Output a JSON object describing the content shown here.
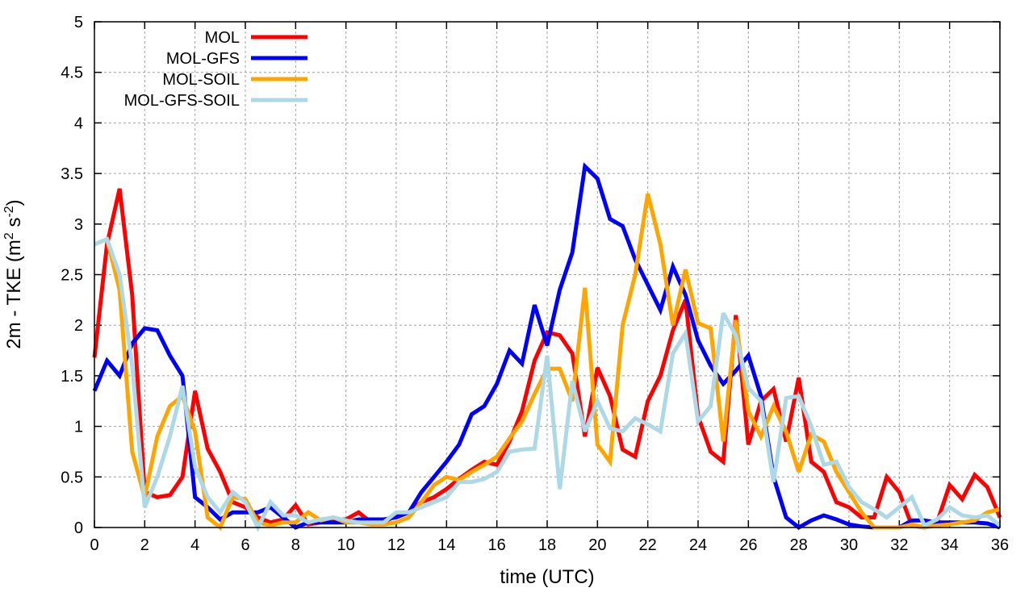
{
  "chart_data": {
    "type": "line",
    "title": "",
    "xlabel": "time (UTC)",
    "ylabel": "2m - TKE (m2 s-2)",
    "ylabel_parts": {
      "main": "2m - TKE (m",
      "exp1": "2",
      "mid": " s",
      "exp2": "-2",
      "end": ")"
    },
    "xlim": [
      0,
      36
    ],
    "ylim": [
      0,
      5
    ],
    "xticks": [
      0,
      2,
      4,
      6,
      8,
      10,
      12,
      14,
      16,
      18,
      20,
      22,
      24,
      26,
      28,
      30,
      32,
      34,
      36
    ],
    "yticks": [
      0,
      0.5,
      1,
      1.5,
      2,
      2.5,
      3,
      3.5,
      4,
      4.5,
      5
    ],
    "grid": true,
    "legend_placement": "top-left",
    "x_step": 0.5,
    "series": [
      {
        "name": "MOL",
        "color": "#ff0000",
        "values": [
          1.68,
          2.8,
          3.35,
          2.3,
          0.35,
          0.3,
          0.32,
          0.5,
          1.35,
          0.78,
          0.55,
          0.25,
          0.2,
          0.1,
          0.05,
          0.08,
          0.22,
          0.03,
          0.05,
          0.08,
          0.08,
          0.15,
          0.05,
          0.05,
          0.12,
          0.15,
          0.25,
          0.3,
          0.38,
          0.48,
          0.57,
          0.65,
          0.62,
          0.85,
          1.15,
          1.65,
          1.93,
          1.9,
          1.72,
          0.9,
          1.58,
          1.3,
          0.77,
          0.7,
          1.25,
          1.5,
          1.95,
          2.25,
          1.1,
          0.75,
          0.65,
          2.1,
          0.82,
          1.25,
          1.37,
          0.85,
          1.48,
          0.65,
          0.55,
          0.25,
          0.2,
          0.1,
          0.1,
          0.5,
          0.35,
          0.02,
          0.0,
          0.05,
          0.42,
          0.28,
          0.52,
          0.4,
          0.1
        ]
      },
      {
        "name": "MOL-GFS",
        "color": "#0000ff",
        "values": [
          1.35,
          1.65,
          1.5,
          1.82,
          1.97,
          1.95,
          1.7,
          1.5,
          0.3,
          0.2,
          0.08,
          0.15,
          0.15,
          0.15,
          0.2,
          0.1,
          0.0,
          0.05,
          0.05,
          0.05,
          0.05,
          0.08,
          0.08,
          0.08,
          0.1,
          0.15,
          0.35,
          0.5,
          0.65,
          0.82,
          1.12,
          1.2,
          1.42,
          1.75,
          1.62,
          2.2,
          1.8,
          2.35,
          2.72,
          3.57,
          3.45,
          3.05,
          2.98,
          2.65,
          2.4,
          2.15,
          2.58,
          2.3,
          1.85,
          1.6,
          1.42,
          1.55,
          1.7,
          1.3,
          0.5,
          0.1,
          0.0,
          0.07,
          0.12,
          0.08,
          0.03,
          0.01,
          0.0,
          0.0,
          0.0,
          0.07,
          0.07,
          0.05,
          0.05,
          0.05,
          0.05,
          0.04,
          0.0
        ]
      },
      {
        "name": "MOL-SOIL",
        "color": "#ffa500",
        "values": [
          2.8,
          2.85,
          2.35,
          0.75,
          0.3,
          0.9,
          1.2,
          1.3,
          0.95,
          0.1,
          0.0,
          0.3,
          0.28,
          0.05,
          0.02,
          0.05,
          0.05,
          0.15,
          0.07,
          0.1,
          0.05,
          0.05,
          0.03,
          0.03,
          0.05,
          0.1,
          0.25,
          0.42,
          0.5,
          0.47,
          0.55,
          0.62,
          0.7,
          0.88,
          1.05,
          1.32,
          1.57,
          1.57,
          1.25,
          2.37,
          0.82,
          0.65,
          2.0,
          2.5,
          3.3,
          2.8,
          2.0,
          2.55,
          2.02,
          1.97,
          0.85,
          2.05,
          1.15,
          0.9,
          1.2,
          0.95,
          0.55,
          0.92,
          0.85,
          0.55,
          0.35,
          0.15,
          0.0,
          0.0,
          0.0,
          0.03,
          0.0,
          0.02,
          0.03,
          0.05,
          0.07,
          0.15,
          0.18
        ]
      },
      {
        "name": "MOL-GFS-SOIL",
        "color": "#add8e6",
        "values": [
          2.8,
          2.85,
          2.5,
          1.6,
          0.2,
          0.5,
          0.9,
          1.4,
          0.6,
          0.3,
          0.15,
          0.35,
          0.25,
          0.0,
          0.25,
          0.12,
          0.12,
          0.05,
          0.08,
          0.1,
          0.07,
          0.05,
          0.05,
          0.05,
          0.15,
          0.15,
          0.2,
          0.25,
          0.3,
          0.45,
          0.45,
          0.48,
          0.55,
          0.75,
          0.77,
          0.78,
          1.7,
          0.38,
          1.45,
          0.95,
          1.25,
          0.98,
          0.95,
          1.08,
          1.02,
          0.95,
          1.72,
          1.92,
          1.05,
          1.2,
          2.12,
          1.9,
          1.38,
          1.25,
          0.45,
          1.28,
          1.3,
          1.0,
          0.62,
          0.65,
          0.4,
          0.25,
          0.18,
          0.1,
          0.2,
          0.3,
          0.02,
          0.08,
          0.2,
          0.12,
          0.1,
          0.12,
          0.02
        ]
      }
    ]
  }
}
